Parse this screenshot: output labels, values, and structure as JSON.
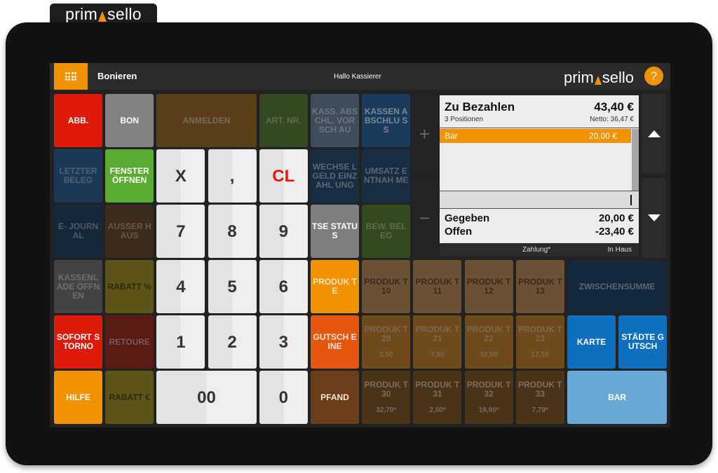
{
  "brand": {
    "name_left": "prim",
    "name_right": "sello"
  },
  "header": {
    "menu_icon": "apps-grid-icon",
    "title": "Bonieren",
    "greeting": "Hallo Kassierer",
    "logo_left": "prim",
    "logo_right": "sello",
    "help_label": "?"
  },
  "colors": {
    "accent": "#f39200",
    "red": "#e2130d",
    "gray": "#808080",
    "green": "#5aab34",
    "blue": "#0e6fbe",
    "light_blue": "#69a8d4",
    "orange_red": "#e5560f"
  },
  "buttons": [
    {
      "id": "abb",
      "label": "ABB.",
      "col": 0,
      "row": 0,
      "w": 1,
      "bg": "#df1a0b",
      "fg": "#ffffff"
    },
    {
      "id": "bon",
      "label": "BON",
      "col": 1,
      "row": 0,
      "w": 1,
      "bg": "#818181",
      "fg": "#ffffff"
    },
    {
      "id": "anmelden",
      "label": "ANMELDEN",
      "col": 2,
      "row": 0,
      "w": 2,
      "bg": "#5b3e19",
      "fg": "#7a6a55"
    },
    {
      "id": "art-nr",
      "label": "ART. NR.",
      "col": 4,
      "row": 0,
      "w": 1,
      "bg": "#34491f",
      "fg": "#5c6b4f"
    },
    {
      "id": "kass-abschl-vorschau",
      "label": "KASS. ABSCHL. VORSCH AU",
      "col": 5,
      "row": 0,
      "w": 1,
      "bg": "#3f4c5a",
      "fg": "#6d7580"
    },
    {
      "id": "kassenabschluss",
      "label": "KASSEN ABSCHLU SS",
      "col": 6,
      "row": 0,
      "w": 1,
      "bg": "#1a3c5c",
      "fg": "#7b8794"
    },
    {
      "id": "letzter-beleg",
      "label": "LETZTER BELEG",
      "col": 0,
      "row": 1,
      "w": 1,
      "bg": "#1b3a57",
      "fg": "#4e6276"
    },
    {
      "id": "fenster-oeffnen",
      "label": "FENSTER ÖFFNEN",
      "col": 1,
      "row": 1,
      "w": 1,
      "bg": "#5aab34",
      "fg": "#ffffff"
    },
    {
      "id": "wechselgeld-einzahlung",
      "label": "WECHSE LGELD EINZAHL UNG",
      "col": 5,
      "row": 1,
      "w": 1,
      "bg": "#182d42",
      "fg": "#5b6773"
    },
    {
      "id": "umsatz-entnahme",
      "label": "UMSATZ ENTNAH ME",
      "col": 6,
      "row": 1,
      "w": 1,
      "bg": "#182d42",
      "fg": "#5b6773"
    },
    {
      "id": "e-journal",
      "label": "E- JOURNAL",
      "col": 0,
      "row": 2,
      "w": 1,
      "bg": "#16273a",
      "fg": "#4f5a66"
    },
    {
      "id": "ausser-haus",
      "label": "AUSSER HAUS",
      "col": 1,
      "row": 2,
      "w": 1,
      "bg": "#3b2c1f",
      "fg": "#66594c"
    },
    {
      "id": "tse-status",
      "label": "TSE STATUS",
      "col": 5,
      "row": 2,
      "w": 1,
      "bg": "#7f7f7f",
      "fg": "#ffffff"
    },
    {
      "id": "bew-beleg",
      "label": "BEW. BELEG",
      "col": 6,
      "row": 2,
      "w": 1,
      "bg": "#34491f",
      "fg": "#5c6b4f"
    },
    {
      "id": "kassenlade-oeffnen",
      "label": "KASSENL ADE ÖFFNEN",
      "col": 0,
      "row": 3,
      "w": 1,
      "bg": "#434343",
      "fg": "#6e6e6e"
    },
    {
      "id": "rabatt-prozent",
      "label": "RABATT %",
      "col": 1,
      "row": 3,
      "w": 1,
      "bg": "#5c5318",
      "fg": "#2f2a0c"
    },
    {
      "id": "produkte",
      "label": "PRODUK TE",
      "col": 5,
      "row": 3,
      "w": 1,
      "bg": "#f39200",
      "fg": "#ffe5c0"
    },
    {
      "id": "produkt-10",
      "label": "PRODUK T 10",
      "col": 6,
      "row": 3,
      "w": 1,
      "bg": "#6a5034",
      "fg": "#3a2a18"
    },
    {
      "id": "produkt-11",
      "label": "PRODUK T 11",
      "col": 7,
      "row": 3,
      "w": 1,
      "bg": "#6a5034",
      "fg": "#3a2a18"
    },
    {
      "id": "produkt-12",
      "label": "PRODUK T 12",
      "col": 8,
      "row": 3,
      "w": 1,
      "bg": "#6a5034",
      "fg": "#3a2a18"
    },
    {
      "id": "produkt-13",
      "label": "PRODUK T 13",
      "col": 9,
      "row": 3,
      "w": 1,
      "bg": "#6a5034",
      "fg": "#3a2a18"
    },
    {
      "id": "zwischensumme",
      "label": "ZWISCHENSUMME",
      "col": 10,
      "row": 3,
      "w": 2,
      "bg": "#15283b",
      "fg": "#5b6470"
    },
    {
      "id": "sofort-storno",
      "label": "SOFORT STORNO",
      "col": 0,
      "row": 4,
      "w": 1,
      "bg": "#df1a0b",
      "fg": "#ffffff"
    },
    {
      "id": "retoure",
      "label": "RETOURE",
      "col": 1,
      "row": 4,
      "w": 1,
      "bg": "#5a1a16",
      "fg": "#7a5a57"
    },
    {
      "id": "gutscheine",
      "label": "GUTSCH EINE",
      "col": 5,
      "row": 4,
      "w": 1,
      "bg": "#e5560f",
      "fg": "#ffe6d8"
    },
    {
      "id": "produkt-20",
      "label": "PRODUK T 20",
      "price": "3,50",
      "col": 6,
      "row": 4,
      "w": 1,
      "bg": "#6e4a1c",
      "fg": "#7d6850"
    },
    {
      "id": "produkt-21",
      "label": "PRODUK T 21",
      "price": "7,90",
      "col": 7,
      "row": 4,
      "w": 1,
      "bg": "#6e4a1c",
      "fg": "#7d6850"
    },
    {
      "id": "produkt-22",
      "label": "PRODUK T 22",
      "price": "32,00",
      "col": 8,
      "row": 4,
      "w": 1,
      "bg": "#6e4a1c",
      "fg": "#7d6850"
    },
    {
      "id": "produkt-23",
      "label": "PRODUK T 23",
      "price": "17,50",
      "col": 9,
      "row": 4,
      "w": 1,
      "bg": "#6e4a1c",
      "fg": "#7d6850"
    },
    {
      "id": "karte",
      "label": "KARTE",
      "col": 10,
      "row": 4,
      "w": 1,
      "bg": "#0e6fbe",
      "fg": "#ffffff"
    },
    {
      "id": "staedte-gutsch",
      "label": "STÄDTE GUTSCH",
      "col": 11,
      "row": 4,
      "w": 1,
      "bg": "#0e6fbe",
      "fg": "#ffffff"
    },
    {
      "id": "hilfe",
      "label": "HILFE",
      "col": 0,
      "row": 5,
      "w": 1,
      "bg": "#f39200",
      "fg": "#ffffff"
    },
    {
      "id": "rabatt-euro",
      "label": "RABATT €",
      "col": 1,
      "row": 5,
      "w": 1,
      "bg": "#5c5318",
      "fg": "#2f2a0c"
    },
    {
      "id": "pfand",
      "label": "PFAND",
      "col": 5,
      "row": 5,
      "w": 1,
      "bg": "#6b3d18",
      "fg": "#f2e6da"
    },
    {
      "id": "produkt-30",
      "label": "PRODUK T 30",
      "price": "32,70*",
      "col": 6,
      "row": 5,
      "w": 1,
      "bg": "#4a3419",
      "fg": "#7a6c5c"
    },
    {
      "id": "produkt-31",
      "label": "PRODUK T 31",
      "price": "2,50*",
      "col": 7,
      "row": 5,
      "w": 1,
      "bg": "#4a3419",
      "fg": "#7a6c5c"
    },
    {
      "id": "produkt-32",
      "label": "PRODUK T 32",
      "price": "19,90*",
      "col": 8,
      "row": 5,
      "w": 1,
      "bg": "#4a3419",
      "fg": "#7a6c5c"
    },
    {
      "id": "produkt-33",
      "label": "PRODUK T 33",
      "price": "7,79*",
      "col": 9,
      "row": 5,
      "w": 1,
      "bg": "#4a3419",
      "fg": "#7a6c5c"
    },
    {
      "id": "bar",
      "label": "BAR",
      "col": 10,
      "row": 5,
      "w": 2,
      "bg": "#69a8d4",
      "fg": "#ffffff"
    }
  ],
  "keypad": [
    {
      "id": "x",
      "label": "X",
      "col": 2,
      "row": 1,
      "w": 1,
      "fg": "#333333"
    },
    {
      "id": "comma",
      "label": ",",
      "col": 3,
      "row": 1,
      "w": 1,
      "fg": "#333333"
    },
    {
      "id": "cl",
      "label": "CL",
      "col": 4,
      "row": 1,
      "w": 1,
      "fg": "#df1a0b"
    },
    {
      "id": "7",
      "label": "7",
      "col": 2,
      "row": 2,
      "w": 1,
      "fg": "#333333"
    },
    {
      "id": "8",
      "label": "8",
      "col": 3,
      "row": 2,
      "w": 1,
      "fg": "#333333"
    },
    {
      "id": "9",
      "label": "9",
      "col": 4,
      "row": 2,
      "w": 1,
      "fg": "#333333"
    },
    {
      "id": "4",
      "label": "4",
      "col": 2,
      "row": 3,
      "w": 1,
      "fg": "#333333"
    },
    {
      "id": "5",
      "label": "5",
      "col": 3,
      "row": 3,
      "w": 1,
      "fg": "#333333"
    },
    {
      "id": "6",
      "label": "6",
      "col": 4,
      "row": 3,
      "w": 1,
      "fg": "#333333"
    },
    {
      "id": "1",
      "label": "1",
      "col": 2,
      "row": 4,
      "w": 1,
      "fg": "#333333"
    },
    {
      "id": "2",
      "label": "2",
      "col": 3,
      "row": 4,
      "w": 1,
      "fg": "#333333"
    },
    {
      "id": "3",
      "label": "3",
      "col": 4,
      "row": 4,
      "w": 1,
      "fg": "#333333"
    },
    {
      "id": "00",
      "label": "00",
      "col": 2,
      "row": 5,
      "w": 2,
      "fg": "#333333"
    },
    {
      "id": "0",
      "label": "0",
      "col": 4,
      "row": 5,
      "w": 1,
      "fg": "#333333"
    }
  ],
  "quantity": {
    "plus_label": "+",
    "minus_label": "−"
  },
  "receipt": {
    "title": "Zu Bezahlen",
    "total": "43,40 €",
    "positions": "3 Positionen",
    "netto": "Netto: 36,47 €",
    "payments": [
      {
        "label": "Bar",
        "amount": "20,00 €"
      }
    ],
    "input_value": "",
    "given_label": "Gegeben",
    "given_value": "20,00 €",
    "open_label": "Offen",
    "open_value": "-23,40 €",
    "status_mode": "Zahlung*",
    "status_location": "In Haus"
  },
  "scroll": {
    "up_icon": "triangle-up-icon",
    "down_icon": "triangle-down-icon"
  }
}
